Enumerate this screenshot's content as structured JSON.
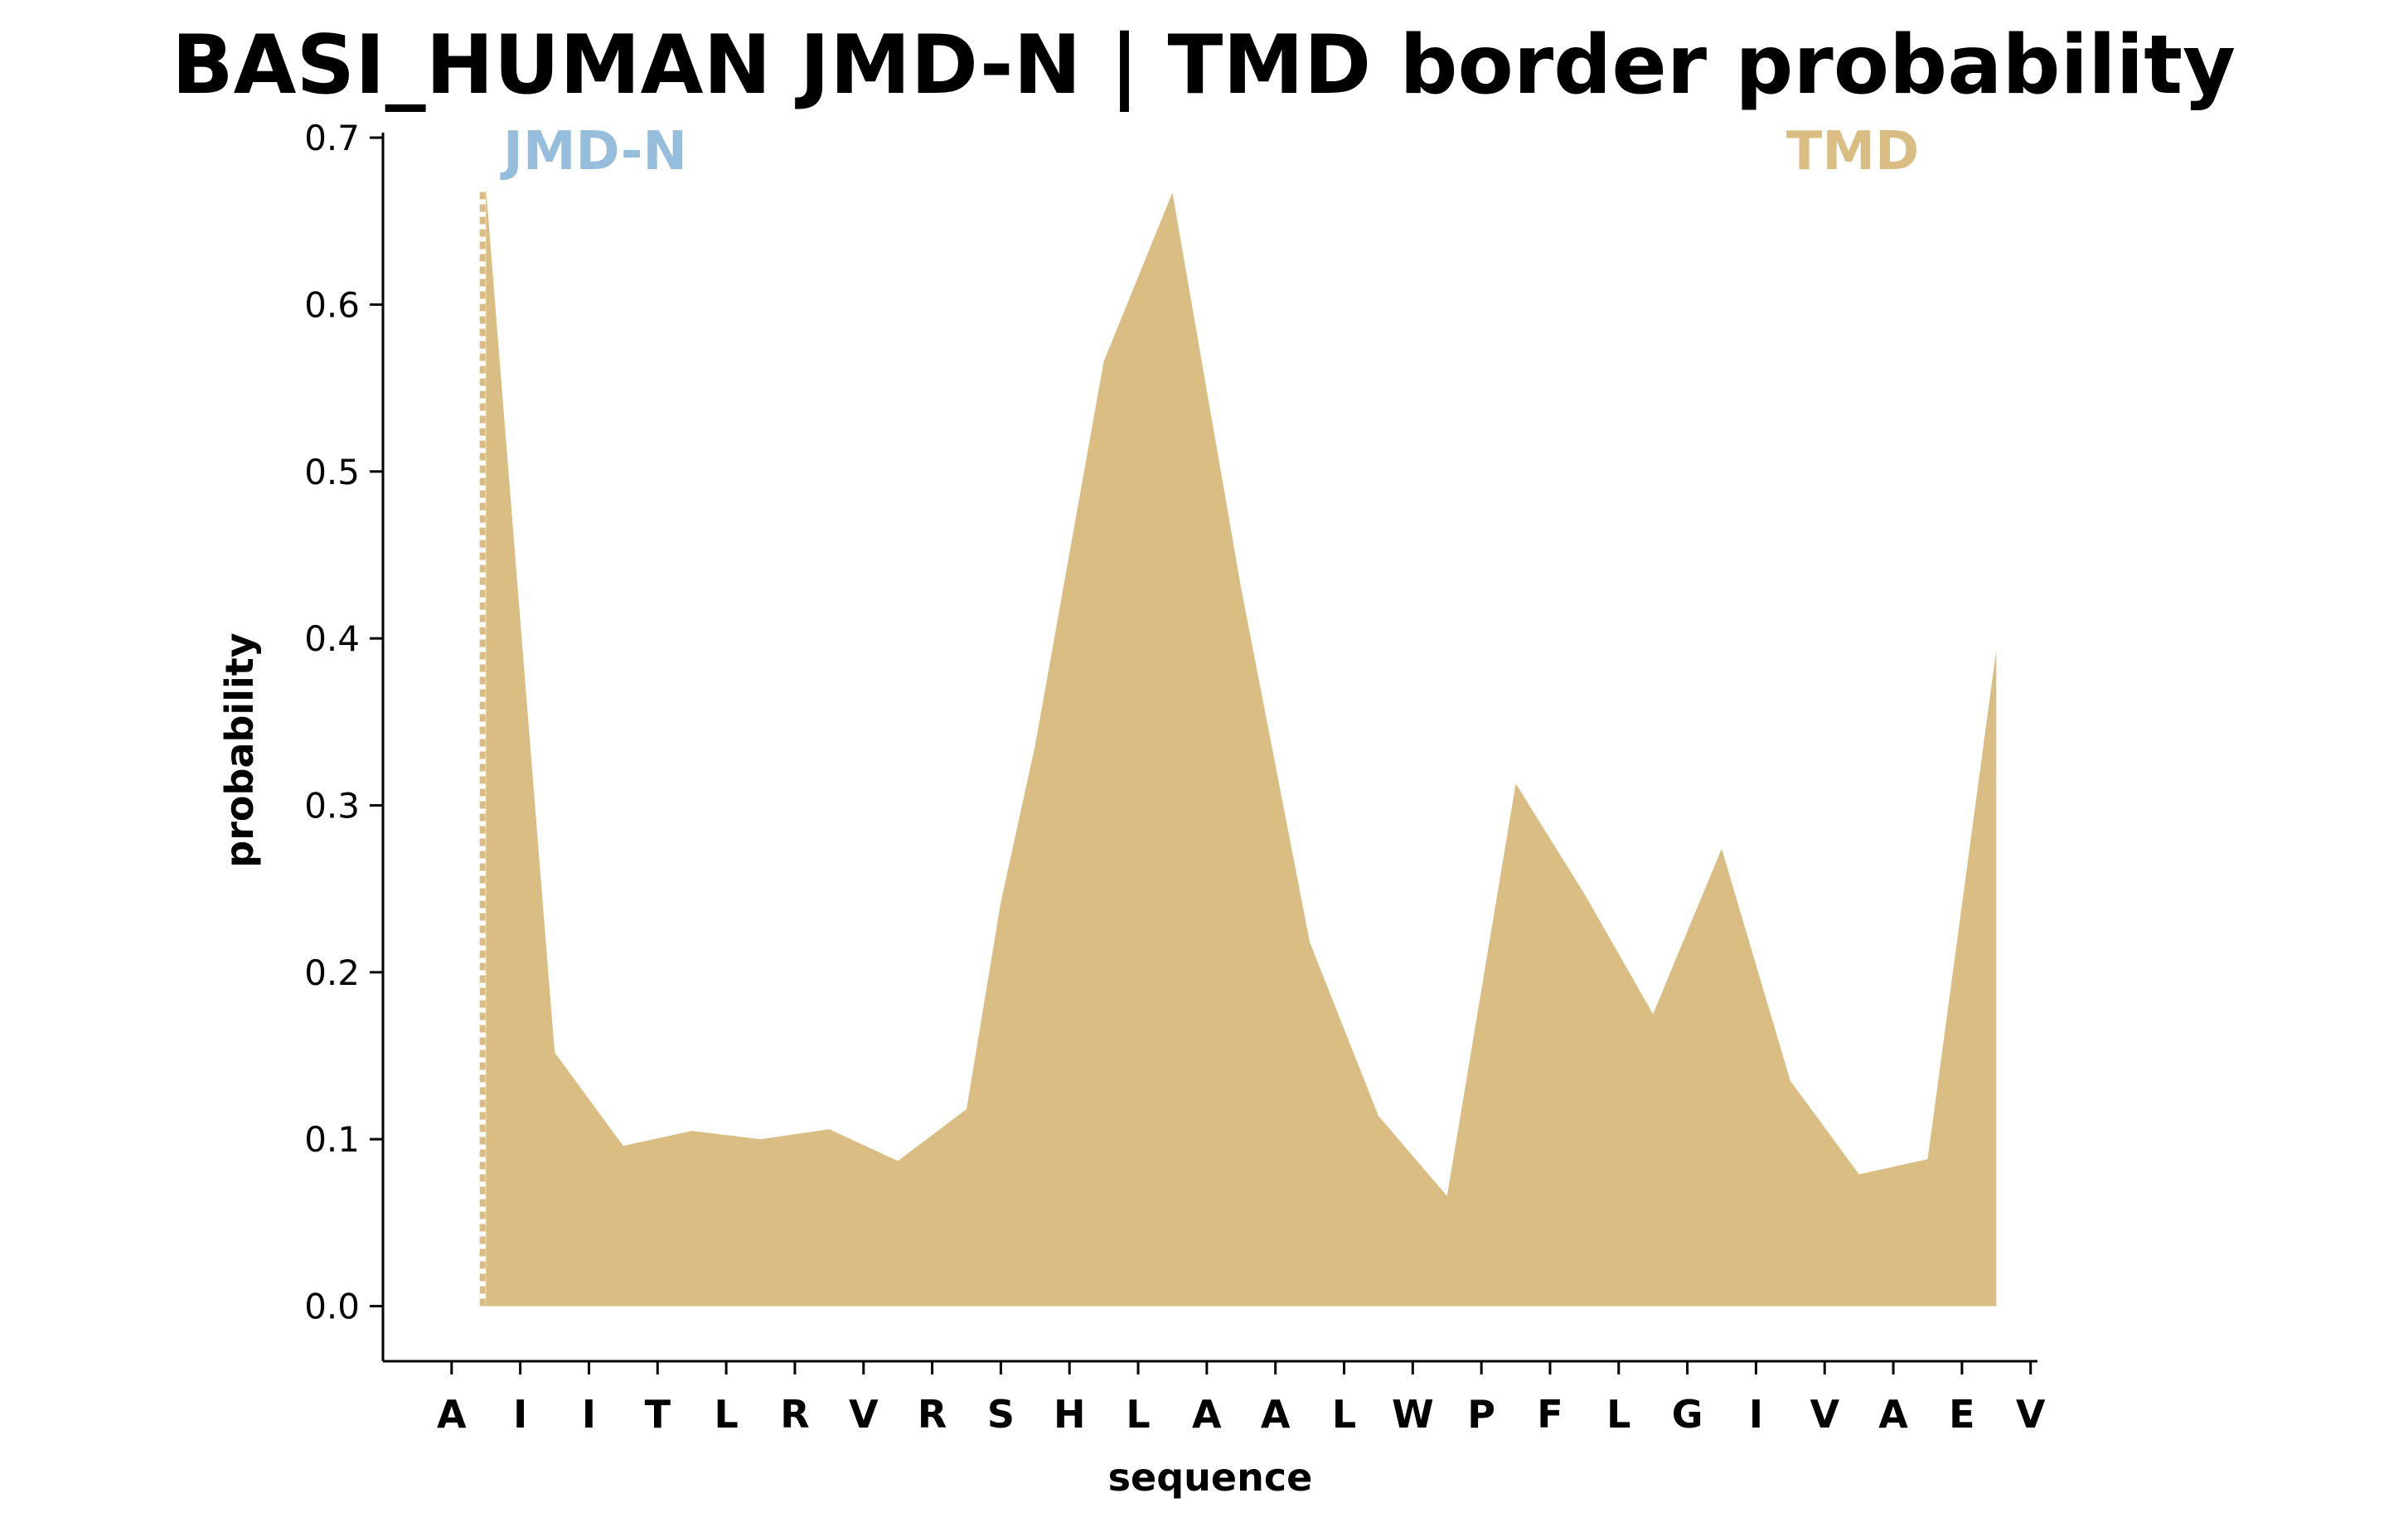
{
  "chart_data": {
    "type": "area",
    "title": "BASI_HUMAN JMD-N | TMD border probability",
    "xlabel": "sequence",
    "ylabel": "probability",
    "ylim": [
      -0.033,
      0.703
    ],
    "yticks": [
      "0.0",
      "0.1",
      "0.2",
      "0.3",
      "0.4",
      "0.5",
      "0.6",
      "0.7"
    ],
    "ytick_values": [
      0.0,
      0.1,
      0.2,
      0.3,
      0.4,
      0.5,
      0.6,
      0.7
    ],
    "categories": [
      "A",
      "I",
      "I",
      "T",
      "L",
      "R",
      "V",
      "R",
      "S",
      "H",
      "L",
      "A",
      "A",
      "L",
      "W",
      "P",
      "F",
      "L",
      "G",
      "I",
      "V",
      "A",
      "E",
      "V"
    ],
    "series": [
      {
        "x": [
          0.5,
          1.5,
          2.5,
          3.5,
          4.5,
          5.5,
          6.5,
          7.5,
          8,
          8.5,
          9.5,
          10.5,
          11.5,
          12.5,
          13.5,
          14.5,
          15.5,
          16.5,
          17.5,
          18.5,
          19.5,
          20.5,
          21.5,
          22.5
        ],
        "values": [
          0.67,
          0.152,
          0.096,
          0.105,
          0.1,
          0.106,
          0.087,
          0.118,
          0.242,
          0.336,
          0.566,
          0.667,
          0.43,
          0.218,
          0.114,
          0.066,
          0.313,
          0.247,
          0.175,
          0.274,
          0.135,
          0.079,
          0.088,
          0.393
        ],
        "color": "#d9bd82"
      }
    ],
    "regions": [
      {
        "label": "JMD-N",
        "color": "#96bedc"
      },
      {
        "label": "TMD",
        "color": "#d9bd82"
      }
    ],
    "border_marker": {
      "x": 0.5,
      "color": "#d9bd82",
      "style": "dotted"
    },
    "grid": false
  }
}
